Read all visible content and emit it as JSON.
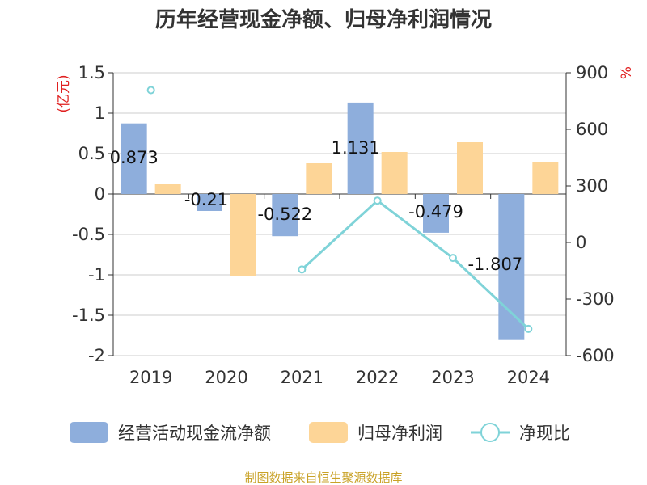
{
  "chart_data": {
    "type": "bar",
    "title": "历年经营现金净额、归母净利润情况",
    "categories": [
      "2019",
      "2020",
      "2021",
      "2022",
      "2023",
      "2024"
    ],
    "y_left": {
      "unit": "(亿元)",
      "ylim": [
        -2,
        1.5
      ],
      "ticks": [
        "1.5",
        "1",
        "0.5",
        "0",
        "-0.5",
        "-1",
        "-1.5",
        "-2"
      ],
      "tick_values": [
        1.5,
        1,
        0.5,
        0,
        -0.5,
        -1,
        -1.5,
        -2
      ]
    },
    "y_right": {
      "unit": "%",
      "ylim": [
        -600,
        900
      ],
      "ticks": [
        "900",
        "600",
        "300",
        "0",
        "-300",
        "-600"
      ],
      "tick_values": [
        900,
        600,
        300,
        0,
        -300,
        -600
      ]
    },
    "series": [
      {
        "name": "经营活动现金流净额",
        "type": "bar",
        "axis": "left",
        "color": "#8eaedc",
        "values": [
          0.873,
          -0.21,
          -0.522,
          1.131,
          -0.479,
          -1.807
        ],
        "labels": [
          "0.873",
          "-0.21",
          "-0.522",
          "1.131",
          "-0.479",
          "-1.807"
        ]
      },
      {
        "name": "归母净利润",
        "type": "bar",
        "axis": "left",
        "color": "#fdd597",
        "values": [
          0.12,
          -1.02,
          0.38,
          0.52,
          0.64,
          0.4
        ]
      },
      {
        "name": "净现比",
        "type": "line",
        "axis": "right",
        "color": "#7fd3d8",
        "values": [
          808,
          null,
          -143,
          222,
          -82,
          -458
        ]
      }
    ],
    "grid": true,
    "legend_position": "bottom"
  },
  "source": "制图数据来自恒生聚源数据库"
}
